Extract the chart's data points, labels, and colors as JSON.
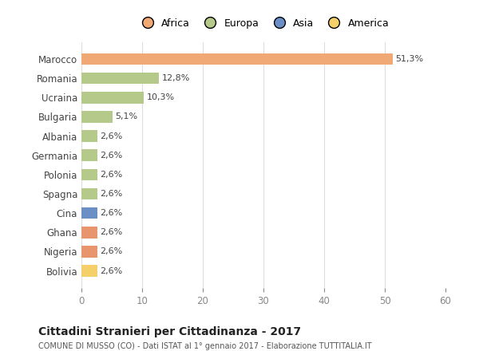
{
  "categories": [
    "Marocco",
    "Romania",
    "Ucraina",
    "Bulgaria",
    "Albania",
    "Germania",
    "Polonia",
    "Spagna",
    "Cina",
    "Ghana",
    "Nigeria",
    "Bolivia"
  ],
  "values": [
    51.3,
    12.8,
    10.3,
    5.1,
    2.6,
    2.6,
    2.6,
    2.6,
    2.6,
    2.6,
    2.6,
    2.6
  ],
  "labels": [
    "51,3%",
    "12,8%",
    "10,3%",
    "5,1%",
    "2,6%",
    "2,6%",
    "2,6%",
    "2,6%",
    "2,6%",
    "2,6%",
    "2,6%",
    "2,6%"
  ],
  "colors": [
    "#f0a875",
    "#b5c98a",
    "#b5c98a",
    "#b5c98a",
    "#b5c98a",
    "#b5c98a",
    "#b5c98a",
    "#b5c98a",
    "#6b8ec4",
    "#e8956d",
    "#e8956d",
    "#f5d06a"
  ],
  "continent_colors": {
    "Africa": "#f0a875",
    "Europa": "#b5c98a",
    "Asia": "#6b8ec4",
    "America": "#f5d06a"
  },
  "legend_labels": [
    "Africa",
    "Europa",
    "Asia",
    "America"
  ],
  "xlim": [
    0,
    60
  ],
  "xticks": [
    0,
    10,
    20,
    30,
    40,
    50,
    60
  ],
  "title": "Cittadini Stranieri per Cittadinanza - 2017",
  "subtitle": "COMUNE DI MUSSO (CO) - Dati ISTAT al 1° gennaio 2017 - Elaborazione TUTTITALIA.IT",
  "background_color": "#ffffff",
  "grid_color": "#dddddd",
  "bar_height": 0.6
}
